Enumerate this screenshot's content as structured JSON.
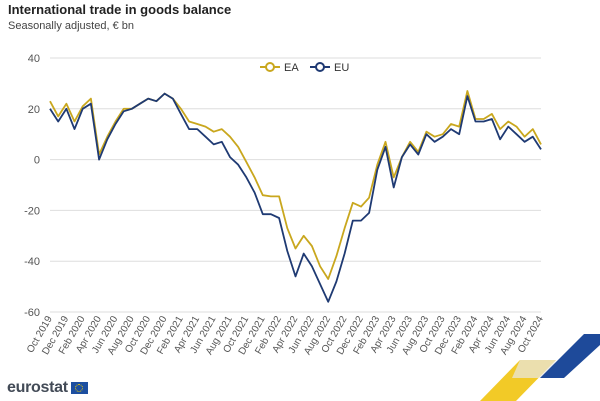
{
  "header": {
    "title": "International trade in goods balance",
    "subtitle": "Seasonally adjusted, € bn"
  },
  "branding": {
    "logo_text": "eurostat"
  },
  "colors": {
    "EA": "#c9a71e",
    "EU": "#1f3a73",
    "grid": "#dedede",
    "tick": "#555555"
  },
  "chart_data": {
    "type": "line",
    "title": "International trade in goods balance",
    "subtitle": "Seasonally adjusted, € bn",
    "ylim": [
      -60,
      40
    ],
    "yticks": [
      -60,
      -40,
      -20,
      0,
      20,
      40
    ],
    "grid": true,
    "legend": "top-center",
    "xtick_labels": [
      "Oct 2019",
      "Dec 2019",
      "Feb 2020",
      "Apr 2020",
      "Jun 2020",
      "Aug 2020",
      "Oct 2020",
      "Dec 2020",
      "Feb 2021",
      "Apr 2021",
      "Jun 2021",
      "Aug 2021",
      "Oct 2021",
      "Dec 2021",
      "Feb 2022",
      "Apr 2022",
      "Jun 2022",
      "Aug 2022",
      "Oct 2022",
      "Dec 2022",
      "Feb 2023",
      "Apr 2023",
      "Jun 2023",
      "Aug 2023",
      "Oct 2023",
      "Dec 2023",
      "Feb 2024",
      "Apr 2024",
      "Jun 2024",
      "Aug 2024",
      "Oct 2024"
    ],
    "series": [
      {
        "name": "EA",
        "values": [
          23,
          17,
          22,
          15,
          21,
          24,
          2,
          9,
          15,
          20,
          20,
          22,
          24,
          23,
          26,
          24,
          20,
          15,
          14,
          13,
          11,
          12,
          9,
          5,
          -1,
          -7,
          -14,
          -14.5,
          -14.5,
          -27,
          -35,
          -30,
          -34,
          -42,
          -47,
          -38,
          -27,
          -17,
          -18.5,
          -15,
          -2,
          7,
          -7,
          1,
          7,
          3,
          11,
          9,
          10,
          14,
          13,
          27,
          16,
          16,
          18,
          12,
          15,
          13,
          9,
          12,
          6
        ]
      },
      {
        "name": "EU",
        "values": [
          20,
          15,
          20,
          12,
          20,
          22,
          0,
          8,
          14,
          19,
          20,
          22,
          24,
          23,
          26,
          24,
          18,
          12,
          12,
          9,
          6,
          7,
          1,
          -2,
          -7,
          -13,
          -21.5,
          -21.5,
          -23,
          -36,
          -46,
          -37,
          -42,
          -49,
          -56,
          -48,
          -37,
          -24,
          -24,
          -21,
          -4,
          5,
          -11,
          1,
          6,
          2,
          10,
          7,
          9,
          12,
          10,
          25,
          15,
          15,
          16,
          8,
          13,
          10,
          7,
          9,
          4
        ]
      }
    ]
  }
}
